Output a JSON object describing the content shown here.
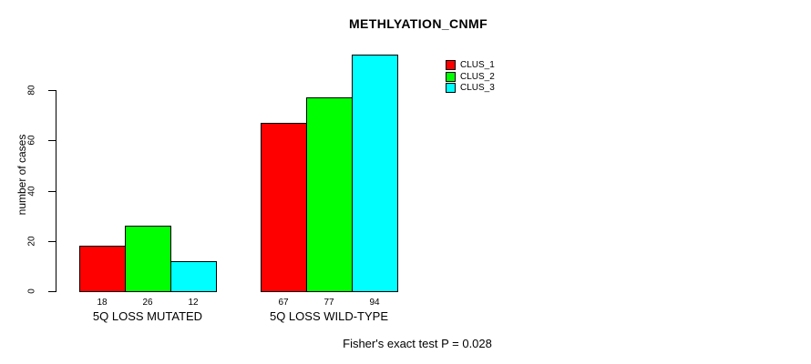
{
  "title": "METHLYATION_CNMF",
  "footer": "Fisher's exact test P = 0.028",
  "chart_data": {
    "type": "bar",
    "title": "METHLYATION_CNMF",
    "ylabel": "number of cases",
    "xlabel": "",
    "categories": [
      "5Q LOSS MUTATED",
      "5Q LOSS WILD-TYPE"
    ],
    "series": [
      {
        "name": "CLUS_1",
        "color": "#ff0000",
        "values": [
          18,
          67
        ]
      },
      {
        "name": "CLUS_2",
        "color": "#00ff00",
        "values": [
          26,
          77
        ]
      },
      {
        "name": "CLUS_3",
        "color": "#00ffff",
        "values": [
          12,
          94
        ]
      }
    ],
    "bar_value_labels": [
      [
        18,
        26,
        12
      ],
      [
        67,
        77,
        94
      ]
    ],
    "y_ticks": [
      0,
      20,
      40,
      60,
      80
    ],
    "ylim": [
      0,
      94
    ],
    "grid": false,
    "legend_position": "top-right",
    "annotation": "Fisher's exact test P = 0.028"
  }
}
